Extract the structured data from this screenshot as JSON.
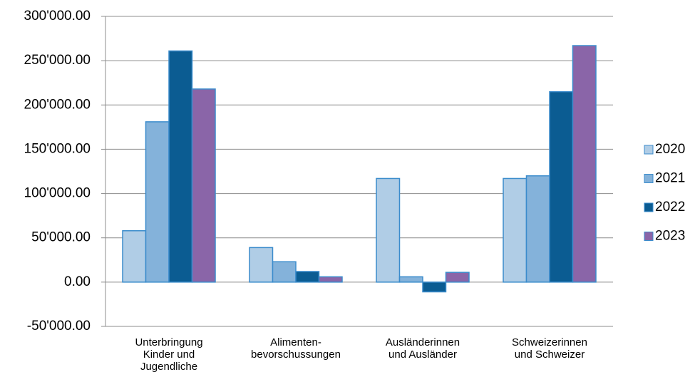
{
  "chart_data": {
    "type": "bar",
    "categories": [
      [
        "Unterbringung",
        "Kinder und",
        "Jugendliche"
      ],
      [
        "Alimenten-",
        "bevorschussungen"
      ],
      [
        "Ausländerinnen",
        "und Ausländer"
      ],
      [
        "Schweizerinnen",
        "und Schweizer"
      ]
    ],
    "series": [
      {
        "name": "2020",
        "color": "#b0cde6",
        "values": [
          58000,
          39000,
          117000,
          117000
        ]
      },
      {
        "name": "2021",
        "color": "#84b2da",
        "values": [
          181000,
          23000,
          6000,
          120000
        ]
      },
      {
        "name": "2022",
        "color": "#0b5c92",
        "values": [
          261000,
          12000,
          -11000,
          215000
        ]
      },
      {
        "name": "2023",
        "color": "#8a65a8",
        "values": [
          218000,
          6000,
          11000,
          267000
        ]
      }
    ],
    "ylim": [
      -50000,
      300000
    ],
    "yticks": [
      {
        "value": -50000,
        "label": "-50'000.00"
      },
      {
        "value": 0,
        "label": "0.00"
      },
      {
        "value": 50000,
        "label": "50'000.00"
      },
      {
        "value": 100000,
        "label": "100'000.00"
      },
      {
        "value": 150000,
        "label": "150'000.00"
      },
      {
        "value": 200000,
        "label": "200'000.00"
      },
      {
        "value": 250000,
        "label": "250'000.00"
      },
      {
        "value": 300000,
        "label": "300'000.00"
      }
    ],
    "grid": true,
    "legend": "right"
  }
}
